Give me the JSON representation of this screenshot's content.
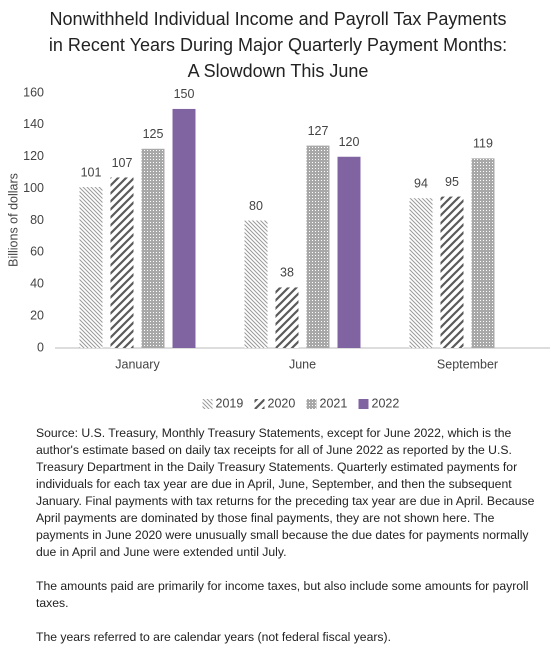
{
  "chart_data": {
    "type": "bar",
    "title": "Nonwithheld Individual Income and Payroll Tax Payments in Recent Years During Major Quarterly Payment Months: A Slowdown This June",
    "y_label": "Billions of dollars",
    "categories": [
      "January",
      "June",
      "September"
    ],
    "series": [
      {
        "name": "2019",
        "color": "#9a9a9a",
        "pattern": "light-diagonal",
        "values": [
          101,
          80,
          94
        ]
      },
      {
        "name": "2020",
        "color": "#5a5a5a",
        "pattern": "wide-diagonal",
        "values": [
          107,
          38,
          95
        ]
      },
      {
        "name": "2021",
        "color": "#a8a8a8",
        "pattern": "crosshatch",
        "values": [
          125,
          127,
          119
        ]
      },
      {
        "name": "2022",
        "color": "#8064a2",
        "pattern": "solid",
        "values": [
          150,
          120,
          null
        ]
      }
    ],
    "ylim": [
      0,
      160
    ],
    "yticks": [
      0,
      20,
      40,
      60,
      80,
      100,
      120,
      140,
      160
    ],
    "grid": false,
    "legend": "bottom",
    "notes": [
      "Source: U.S. Treasury, Monthly Treasury Statements, except for June 2022, which is the author's estimate based on daily tax receipts for all of June 2022 as reported by the U.S. Treasury Department in the Daily Treasury Statements. Quarterly estimated payments for individuals for each tax year are due in April, June, September, and then the subsequent January. Final payments with tax returns for the preceding tax year are due in April. Because April payments are dominated by those final payments, they are not shown here. The payments in June 2020 were unusually small because the due dates for payments normally due in April and June were extended until July.",
      "The amounts paid are primarily for income taxes, but also include some amounts for payroll taxes.",
      "The years referred to are calendar years (not federal fiscal years)."
    ]
  }
}
